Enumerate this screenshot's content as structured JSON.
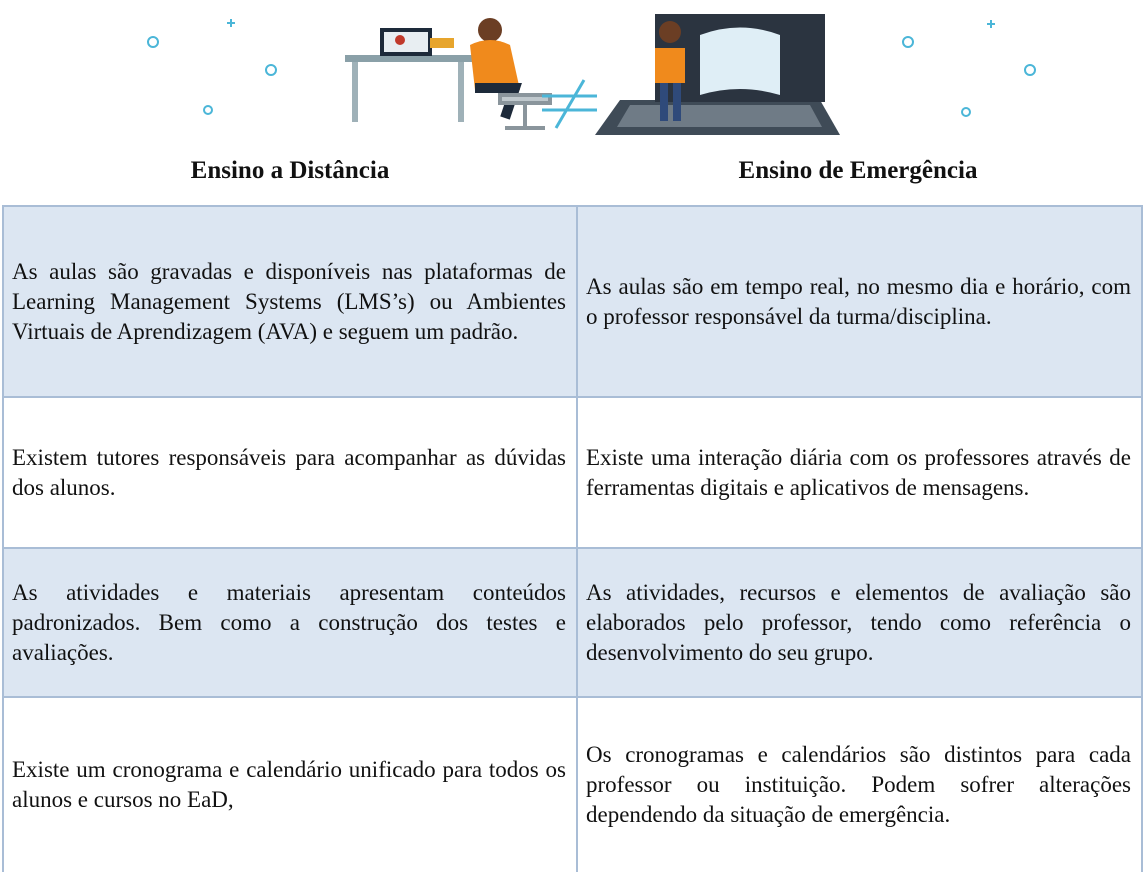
{
  "header": {
    "left_title": "Ensino a Distância",
    "right_title": "Ensino de Emergência"
  },
  "table": {
    "rows": [
      [
        "As aulas são gravadas e disponíveis nas plataformas de Learning Management Systems (LMS’s) ou Ambientes Virtuais de Aprendizagem (AVA) e seguem um padrão.",
        "As aulas são em tempo real, no mesmo dia e horário, com o professor responsável da turma/disciplina."
      ],
      [
        "Existem tutores responsáveis para acompanhar as dúvidas dos alunos.",
        "Existe uma interação diária com os professores através de ferramentas digitais e aplicativos de mensagens."
      ],
      [
        "As atividades e materiais apresentam conteúdos padronizados. Bem como a construção dos testes e avaliações.",
        "As atividades, recursos e elementos de avaliação são elaborados pelo professor, tendo como referência o desenvolvimento do seu grupo."
      ],
      [
        "Existe um cronograma e calendário unificado para todos os alunos e cursos no EaD,",
        "Os cronogramas e calendários são distintos para cada professor ou instituição. Podem sofrer alterações dependendo da situação de emergência."
      ]
    ]
  }
}
